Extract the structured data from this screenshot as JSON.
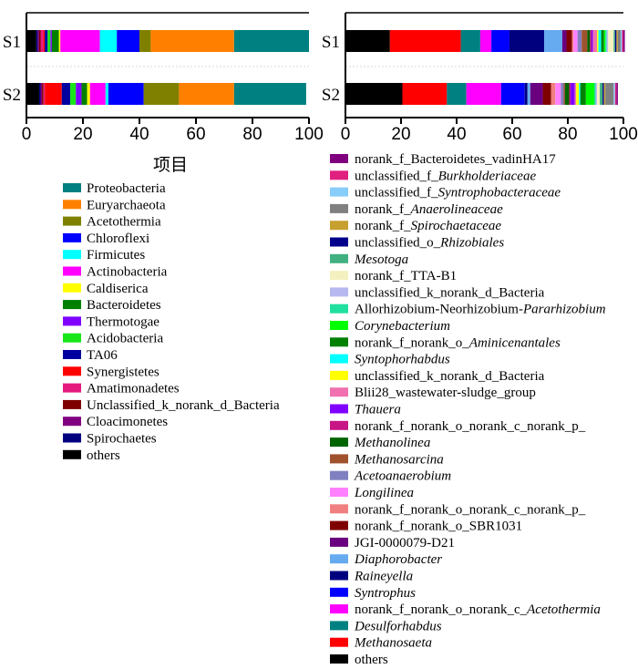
{
  "chart_data": [
    {
      "type": "bar",
      "orientation": "horizontal",
      "stacked": true,
      "title": "项目",
      "xlim": [
        0,
        100
      ],
      "x_ticks": [
        "0",
        "20",
        "40",
        "60",
        "80",
        "100"
      ],
      "categories": [
        "S1",
        "S2"
      ],
      "series": [
        {
          "name": "others",
          "color": "#000000",
          "values": [
            3.5,
            4.5
          ]
        },
        {
          "name": "Spirochaetes",
          "color": "#00007f",
          "values": [
            0.5,
            0.5
          ]
        },
        {
          "name": "Cloacimonetes",
          "color": "#800080",
          "values": [
            0.5,
            0.5
          ]
        },
        {
          "name": "Unclassified_k_norank_d_Bacteria",
          "color": "#7f0000",
          "values": [
            0.5,
            0.5
          ]
        },
        {
          "name": "Amatimonadetes",
          "color": "#e6197f",
          "values": [
            1.0,
            0.5
          ]
        },
        {
          "name": "Synergistetes",
          "color": "#ff0000",
          "values": [
            0.5,
            6.0
          ]
        },
        {
          "name": "TA06",
          "color": "#0000a0",
          "values": [
            1.0,
            3.0
          ]
        },
        {
          "name": "Acidobacteria",
          "color": "#19e619",
          "values": [
            1.0,
            2.0
          ]
        },
        {
          "name": "Thermotogae",
          "color": "#8000ff",
          "values": [
            0.5,
            2.0
          ]
        },
        {
          "name": "Bacteroidetes",
          "color": "#008000",
          "values": [
            2.5,
            2.0
          ]
        },
        {
          "name": "Caldiserica",
          "color": "#ffff00",
          "values": [
            0.5,
            1.0
          ]
        },
        {
          "name": "Actinobacteria",
          "color": "#ff00ff",
          "values": [
            14.0,
            5.5
          ]
        },
        {
          "name": "Firmicutes",
          "color": "#00ffff",
          "values": [
            6.0,
            1.0
          ]
        },
        {
          "name": "Chloroflexi",
          "color": "#0000ff",
          "values": [
            8.0,
            12.5
          ]
        },
        {
          "name": "Acetothermia",
          "color": "#808000",
          "values": [
            4.0,
            12.5
          ]
        },
        {
          "name": "Euryarchaeota",
          "color": "#ff8000",
          "values": [
            29.5,
            19.5
          ]
        },
        {
          "name": "Proteobacteria",
          "color": "#008080",
          "values": [
            26.5,
            25.5
          ]
        }
      ]
    },
    {
      "type": "bar",
      "orientation": "horizontal",
      "stacked": true,
      "xlim": [
        0,
        100
      ],
      "x_ticks": [
        "0",
        "20",
        "40",
        "60",
        "80",
        "100"
      ],
      "categories": [
        "S1",
        "S2"
      ],
      "series": [
        {
          "name": "others",
          "color": "#000000",
          "values": [
            16.0,
            20.5
          ]
        },
        {
          "name": "Methanosaeta",
          "color": "#ff0000",
          "values": [
            25.5,
            16.0
          ]
        },
        {
          "name": "Desulforhabdus",
          "color": "#008080",
          "values": [
            7.0,
            7.0
          ]
        },
        {
          "name": "norank_f_norank_o_norank_c_Acetothermia",
          "color": "#ff00ff",
          "values": [
            4.0,
            12.5
          ]
        },
        {
          "name": "Syntrophus",
          "color": "#0000ff",
          "values": [
            6.5,
            8.5
          ]
        },
        {
          "name": "Raineyella",
          "color": "#00007f",
          "values": [
            12.5,
            1.0
          ]
        },
        {
          "name": "Diaphorobacter",
          "color": "#66aaf0",
          "values": [
            6.5,
            1.0
          ]
        },
        {
          "name": "JGI-0000079-D21",
          "color": "#6a0080",
          "values": [
            1.5,
            4.5
          ]
        },
        {
          "name": "norank_f_norank_o_SBR1031",
          "color": "#7f0000",
          "values": [
            2.0,
            3.0
          ]
        },
        {
          "name": "norank_f_norank_o_norank_c_norank_p_",
          "color": "#f08080",
          "values": [
            0.5,
            1.5
          ]
        },
        {
          "name": "Longilinea",
          "color": "#ff80ff",
          "values": [
            1.5,
            2.0
          ]
        },
        {
          "name": "Acetoanaerobium",
          "color": "#8080c0",
          "values": [
            1.5,
            1.0
          ]
        },
        {
          "name": "Methanosarcina",
          "color": "#a0522d",
          "values": [
            2.0,
            0.5
          ]
        },
        {
          "name": "Methanolinea",
          "color": "#006400",
          "values": [
            1.0,
            1.5
          ]
        },
        {
          "name": "norank_f_norank_o_norank_c_norank_p_",
          "color": "#c71585",
          "values": [
            0.5,
            0.5
          ]
        },
        {
          "name": "Thauera",
          "color": "#8000ff",
          "values": [
            0.5,
            1.5
          ]
        },
        {
          "name": "Blii28_wastewater-sludge_group",
          "color": "#f070b0",
          "values": [
            1.5,
            0.5
          ]
        },
        {
          "name": "unclassified_k_norank_d_Bacteria",
          "color": "#ffff00",
          "values": [
            0.5,
            1.0
          ]
        },
        {
          "name": "Syntophorhabdus",
          "color": "#00ffff",
          "values": [
            1.0,
            0.5
          ]
        },
        {
          "name": "norank_f_norank_o_Aminicenantales",
          "color": "#008000",
          "values": [
            1.0,
            2.0
          ]
        },
        {
          "name": "Corynebacterium",
          "color": "#00ff00",
          "values": [
            0.5,
            3.0
          ]
        },
        {
          "name": "Allorhizobium-Neorhizobium-Pararhizobium",
          "color": "#20e0a0",
          "values": [
            0.5,
            0.5
          ]
        },
        {
          "name": "unclassified_k_norank_d_Bacteria",
          "color": "#b8b8f0",
          "values": [
            0.5,
            0.5
          ]
        },
        {
          "name": "norank_f_TTA-B1",
          "color": "#f5f0c0",
          "values": [
            2.0,
            1.0
          ]
        },
        {
          "name": "Mesotoga",
          "color": "#40b080",
          "values": [
            0.5,
            1.0
          ]
        },
        {
          "name": "unclassified_o_Rhizobiales",
          "color": "#00008b",
          "values": [
            0.5,
            0.5
          ]
        },
        {
          "name": "norank_f_Spirochaetaceae",
          "color": "#c8a030",
          "values": [
            0.5,
            0.5
          ]
        },
        {
          "name": "norank_f_Anaerolineaceae",
          "color": "#808080",
          "values": [
            1.0,
            3.0
          ]
        },
        {
          "name": "unclassified_f_Syntrophobacteraceae",
          "color": "#87cefa",
          "values": [
            0.5,
            0.5
          ]
        },
        {
          "name": "unclassified_f_Burkholderiaceae",
          "color": "#e0207f",
          "values": [
            0.5,
            0.5
          ]
        },
        {
          "name": "norank_f_Bacteroidetes_vadinHA17",
          "color": "#7f007f",
          "values": [
            0.5,
            0.5
          ]
        }
      ]
    }
  ],
  "legend1": [
    {
      "name": "Proteobacteria",
      "color": "#008080"
    },
    {
      "name": "Euryarchaeota",
      "color": "#ff8000"
    },
    {
      "name": "Acetothermia",
      "color": "#808000"
    },
    {
      "name": "Chloroflexi",
      "color": "#0000ff"
    },
    {
      "name": "Firmicutes",
      "color": "#00ffff"
    },
    {
      "name": "Actinobacteria",
      "color": "#ff00ff"
    },
    {
      "name": "Caldiserica",
      "color": "#ffff00"
    },
    {
      "name": "Bacteroidetes",
      "color": "#008000"
    },
    {
      "name": "Thermotogae",
      "color": "#8000ff"
    },
    {
      "name": "Acidobacteria",
      "color": "#19e619"
    },
    {
      "name": "TA06",
      "color": "#0000a0"
    },
    {
      "name": "Synergistetes",
      "color": "#ff0000"
    },
    {
      "name": "Amatimonadetes",
      "color": "#e6197f"
    },
    {
      "name": "Unclassified_k_norank_d_Bacteria",
      "color": "#7f0000"
    },
    {
      "name": "Cloacimonetes",
      "color": "#800080"
    },
    {
      "name": "Spirochaetes",
      "color": "#00007f"
    },
    {
      "name": "others",
      "color": "#000000"
    }
  ],
  "legend2": [
    {
      "parts": [
        {
          "t": "norank_f_Bacteroidetes_vadinHA17",
          "i": false
        }
      ],
      "color": "#7f007f"
    },
    {
      "parts": [
        {
          "t": "unclassified_f_",
          "i": false
        },
        {
          "t": "Burkholderiaceae",
          "i": true
        }
      ],
      "color": "#e0207f"
    },
    {
      "parts": [
        {
          "t": "unclassified_f_",
          "i": false
        },
        {
          "t": "Syntrophobacteraceae",
          "i": true
        }
      ],
      "color": "#87cefa"
    },
    {
      "parts": [
        {
          "t": "norank_f_",
          "i": false
        },
        {
          "t": "Anaerolineaceae",
          "i": true
        }
      ],
      "color": "#808080"
    },
    {
      "parts": [
        {
          "t": "norank_f_",
          "i": false
        },
        {
          "t": "Spirochaetaceae",
          "i": true
        }
      ],
      "color": "#c8a030"
    },
    {
      "parts": [
        {
          "t": "unclassified_o_",
          "i": false
        },
        {
          "t": "Rhizobiales",
          "i": true
        }
      ],
      "color": "#00008b"
    },
    {
      "parts": [
        {
          "t": "Mesotoga",
          "i": true
        }
      ],
      "color": "#40b080"
    },
    {
      "parts": [
        {
          "t": "norank_f_TTA-B1",
          "i": false
        }
      ],
      "color": "#f5f0c0"
    },
    {
      "parts": [
        {
          "t": "unclassified_k_norank_d_Bacteria",
          "i": false
        }
      ],
      "color": "#b8b8f0"
    },
    {
      "parts": [
        {
          "t": "Allorhizobium-Neorhizobium-",
          "i": false
        },
        {
          "t": "Pararhizobium",
          "i": true
        }
      ],
      "color": "#20e0a0"
    },
    {
      "parts": [
        {
          "t": "Corynebacterium",
          "i": true
        }
      ],
      "color": "#00ff00"
    },
    {
      "parts": [
        {
          "t": "norank_f_norank_o_",
          "i": false
        },
        {
          "t": "Aminicenantales",
          "i": true
        }
      ],
      "color": "#008000"
    },
    {
      "parts": [
        {
          "t": "Syntophorhabdus",
          "i": true
        }
      ],
      "color": "#00ffff"
    },
    {
      "parts": [
        {
          "t": "unclassified_k_norank_d_Bacteria",
          "i": false
        }
      ],
      "color": "#ffff00"
    },
    {
      "parts": [
        {
          "t": "Blii28_wastewater-sludge_group",
          "i": false
        }
      ],
      "color": "#f070b0"
    },
    {
      "parts": [
        {
          "t": "Thauera",
          "i": true
        }
      ],
      "color": "#8000ff"
    },
    {
      "parts": [
        {
          "t": "norank_f_norank_o_norank_c_norank_p_",
          "i": false
        }
      ],
      "color": "#c71585"
    },
    {
      "parts": [
        {
          "t": "Methanolinea",
          "i": true
        }
      ],
      "color": "#006400"
    },
    {
      "parts": [
        {
          "t": "Methanosarcina",
          "i": true
        }
      ],
      "color": "#a0522d"
    },
    {
      "parts": [
        {
          "t": "Acetoanaerobium",
          "i": true
        }
      ],
      "color": "#8080c0"
    },
    {
      "parts": [
        {
          "t": "Longilinea",
          "i": true
        }
      ],
      "color": "#ff80ff"
    },
    {
      "parts": [
        {
          "t": "norank_f_norank_o_norank_c_norank_p_",
          "i": false
        }
      ],
      "color": "#f08080"
    },
    {
      "parts": [
        {
          "t": "norank_f_norank_o_SBR1031",
          "i": false
        }
      ],
      "color": "#7f0000"
    },
    {
      "parts": [
        {
          "t": "JGI-0000079-D21",
          "i": false
        }
      ],
      "color": "#6a0080"
    },
    {
      "parts": [
        {
          "t": "Diaphorobacter",
          "i": true
        }
      ],
      "color": "#66aaf0"
    },
    {
      "parts": [
        {
          "t": "Raineyella",
          "i": true
        }
      ],
      "color": "#00007f"
    },
    {
      "parts": [
        {
          "t": "Syntrophus",
          "i": true
        }
      ],
      "color": "#0000ff"
    },
    {
      "parts": [
        {
          "t": "norank_f_norank_o_norank_c_",
          "i": false
        },
        {
          "t": "Acetothermia",
          "i": true
        }
      ],
      "color": "#ff00ff"
    },
    {
      "parts": [
        {
          "t": "Desulforhabdus",
          "i": true
        }
      ],
      "color": "#008080"
    },
    {
      "parts": [
        {
          "t": "Methanosaeta",
          "i": true
        }
      ],
      "color": "#ff0000"
    },
    {
      "parts": [
        {
          "t": "others",
          "i": false
        }
      ],
      "color": "#000000"
    }
  ]
}
